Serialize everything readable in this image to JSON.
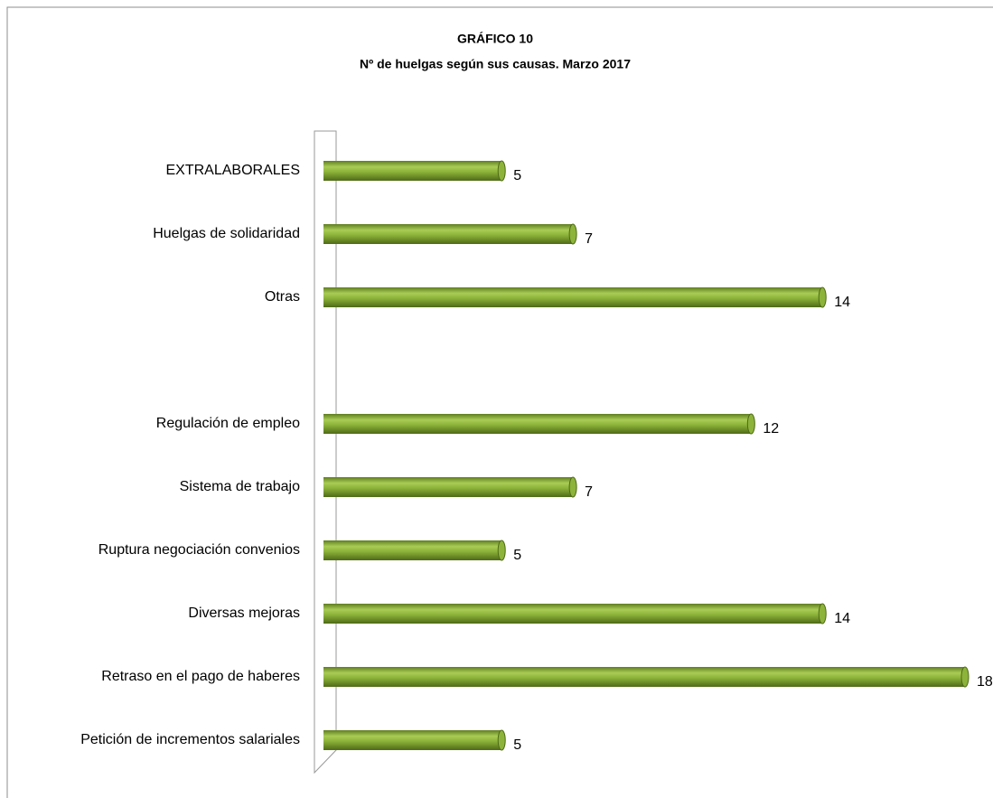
{
  "chart_data": {
    "type": "bar",
    "orientation": "horizontal",
    "title": "GRÁFICO 10",
    "subtitle": "Nº de huelgas según sus causas. Marzo 2017",
    "categories": [
      "EXTRALABORALES",
      "Huelgas de solidaridad",
      "Otras",
      null,
      "Regulación de empleo",
      "Sistema de trabajo",
      "Ruptura negociación convenios",
      "Diversas mejoras",
      "Retraso en el pago de haberes",
      "Petición de incrementos salariales"
    ],
    "values": [
      5,
      7,
      14,
      null,
      12,
      7,
      5,
      14,
      18,
      5
    ],
    "color": "#8db33a",
    "xlim": [
      0,
      18
    ]
  }
}
